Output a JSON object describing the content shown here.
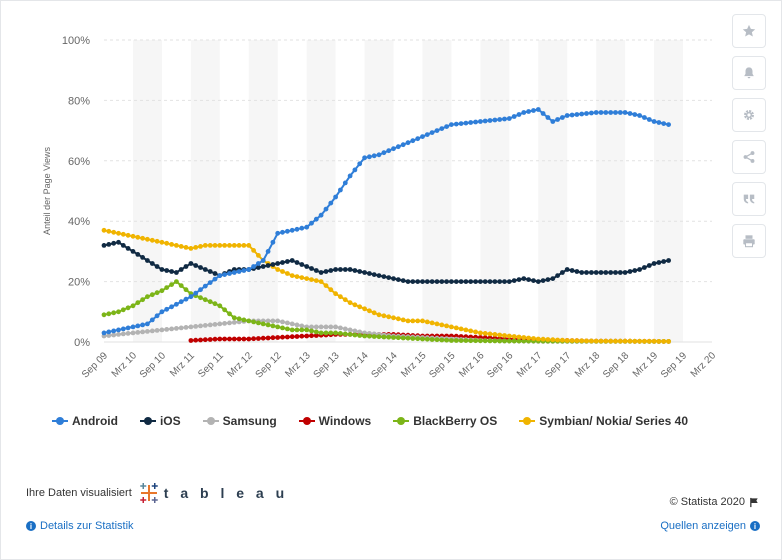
{
  "chart_data": {
    "type": "line",
    "ylabel": "Anteil der Page Views",
    "ylim": [
      0,
      100
    ],
    "y_ticks": [
      "0%",
      "20%",
      "40%",
      "60%",
      "80%",
      "100%"
    ],
    "x_ticks": [
      "Sep 09",
      "Mrz 10",
      "Sep 10",
      "Mrz 11",
      "Sep 11",
      "Mrz 12",
      "Sep 12",
      "Mrz 13",
      "Sep 13",
      "Mrz 14",
      "Sep 14",
      "Mrz 15",
      "Sep 15",
      "Mrz 16",
      "Sep 16",
      "Mrz 17",
      "Sep 17",
      "Mrz 18",
      "Sep 18",
      "Mrz 19",
      "Sep 19",
      "Mrz 20"
    ],
    "x_range": [
      0,
      126
    ],
    "series": [
      {
        "name": "Android",
        "color": "#2f7ed8",
        "start": 0,
        "anchors": [
          [
            0,
            3
          ],
          [
            6,
            5
          ],
          [
            9,
            6
          ],
          [
            12,
            10
          ],
          [
            18,
            15
          ],
          [
            24,
            22
          ],
          [
            30,
            24
          ],
          [
            33,
            27
          ],
          [
            36,
            36
          ],
          [
            42,
            38
          ],
          [
            45,
            42
          ],
          [
            48,
            48
          ],
          [
            51,
            55
          ],
          [
            54,
            61
          ],
          [
            57,
            62
          ],
          [
            60,
            64
          ],
          [
            63,
            66
          ],
          [
            66,
            68
          ],
          [
            69,
            70
          ],
          [
            72,
            72
          ],
          [
            78,
            73
          ],
          [
            84,
            74
          ],
          [
            87,
            76
          ],
          [
            90,
            77
          ],
          [
            93,
            73
          ],
          [
            96,
            75
          ],
          [
            102,
            76
          ],
          [
            108,
            76
          ],
          [
            111,
            75
          ],
          [
            114,
            73
          ],
          [
            117,
            72
          ]
        ]
      },
      {
        "name": "iOS",
        "color": "#102a43",
        "start": 0,
        "anchors": [
          [
            0,
            32
          ],
          [
            3,
            33
          ],
          [
            6,
            30
          ],
          [
            9,
            27
          ],
          [
            12,
            24
          ],
          [
            15,
            23
          ],
          [
            18,
            26
          ],
          [
            21,
            24
          ],
          [
            24,
            22
          ],
          [
            27,
            24
          ],
          [
            30,
            24
          ],
          [
            33,
            25
          ],
          [
            36,
            26
          ],
          [
            39,
            27
          ],
          [
            42,
            25
          ],
          [
            45,
            23
          ],
          [
            48,
            24
          ],
          [
            51,
            24
          ],
          [
            54,
            23
          ],
          [
            57,
            22
          ],
          [
            60,
            21
          ],
          [
            63,
            20
          ],
          [
            66,
            20
          ],
          [
            69,
            20
          ],
          [
            72,
            20
          ],
          [
            78,
            20
          ],
          [
            84,
            20
          ],
          [
            87,
            21
          ],
          [
            90,
            20
          ],
          [
            93,
            21
          ],
          [
            96,
            24
          ],
          [
            99,
            23
          ],
          [
            102,
            23
          ],
          [
            105,
            23
          ],
          [
            108,
            23
          ],
          [
            111,
            24
          ],
          [
            114,
            26
          ],
          [
            117,
            27
          ]
        ]
      },
      {
        "name": "Samsung",
        "color": "#b3b3b3",
        "start": 0,
        "anchors": [
          [
            0,
            2
          ],
          [
            6,
            3
          ],
          [
            12,
            4
          ],
          [
            18,
            5
          ],
          [
            24,
            6
          ],
          [
            30,
            7
          ],
          [
            36,
            7
          ],
          [
            39,
            6
          ],
          [
            42,
            5
          ],
          [
            48,
            5
          ],
          [
            51,
            4
          ],
          [
            54,
            3
          ],
          [
            60,
            2
          ],
          [
            66,
            1.5
          ],
          [
            72,
            1
          ],
          [
            78,
            0.5
          ],
          [
            84,
            0.3
          ],
          [
            90,
            0.2
          ],
          [
            117,
            0.2
          ]
        ]
      },
      {
        "name": "Windows",
        "color": "#c00000",
        "start": 18,
        "anchors": [
          [
            18,
            0.5
          ],
          [
            24,
            1
          ],
          [
            30,
            1
          ],
          [
            36,
            1.5
          ],
          [
            42,
            2
          ],
          [
            48,
            2.5
          ],
          [
            54,
            2.5
          ],
          [
            60,
            2.5
          ],
          [
            66,
            2
          ],
          [
            72,
            2
          ],
          [
            78,
            1.5
          ],
          [
            84,
            1
          ],
          [
            90,
            0.5
          ],
          [
            96,
            0.5
          ],
          [
            102,
            0.3
          ],
          [
            117,
            0.2
          ]
        ]
      },
      {
        "name": "BlackBerry OS",
        "color": "#7cb518",
        "start": 0,
        "anchors": [
          [
            0,
            9
          ],
          [
            3,
            10
          ],
          [
            6,
            12
          ],
          [
            9,
            15
          ],
          [
            12,
            17
          ],
          [
            14,
            19
          ],
          [
            15,
            20
          ],
          [
            18,
            16
          ],
          [
            21,
            14
          ],
          [
            24,
            12
          ],
          [
            27,
            8
          ],
          [
            30,
            7
          ],
          [
            33,
            6
          ],
          [
            36,
            5
          ],
          [
            39,
            4
          ],
          [
            42,
            4
          ],
          [
            45,
            3
          ],
          [
            48,
            3
          ],
          [
            54,
            2
          ],
          [
            60,
            1.5
          ],
          [
            66,
            1
          ],
          [
            72,
            0.5
          ],
          [
            84,
            0.3
          ],
          [
            117,
            0.2
          ]
        ]
      },
      {
        "name": "Symbian/ Nokia/ Series 40",
        "color": "#f0b400",
        "start": 0,
        "anchors": [
          [
            0,
            37
          ],
          [
            3,
            36
          ],
          [
            6,
            35
          ],
          [
            9,
            34
          ],
          [
            12,
            33
          ],
          [
            15,
            32
          ],
          [
            18,
            31
          ],
          [
            21,
            32
          ],
          [
            24,
            32
          ],
          [
            27,
            32
          ],
          [
            30,
            32
          ],
          [
            33,
            27
          ],
          [
            36,
            24
          ],
          [
            39,
            22
          ],
          [
            42,
            21
          ],
          [
            45,
            20
          ],
          [
            48,
            16
          ],
          [
            51,
            13
          ],
          [
            54,
            11
          ],
          [
            57,
            9
          ],
          [
            60,
            8
          ],
          [
            63,
            7
          ],
          [
            66,
            7
          ],
          [
            69,
            6
          ],
          [
            72,
            5
          ],
          [
            75,
            4
          ],
          [
            78,
            3
          ],
          [
            84,
            2
          ],
          [
            90,
            1
          ],
          [
            96,
            0.5
          ],
          [
            102,
            0.3
          ],
          [
            117,
            0.2
          ]
        ]
      }
    ]
  },
  "footer": {
    "visualized_by": "Ihre Daten visualisiert",
    "tableau_word": "t a b l e a u",
    "copyright": "© Statista 2020",
    "details_link": "Details zur Statistik",
    "sources_link": "Quellen anzeigen"
  },
  "sidebar_icons": [
    "star-icon",
    "bell-icon",
    "gear-icon",
    "share-icon",
    "quote-icon",
    "print-icon"
  ]
}
